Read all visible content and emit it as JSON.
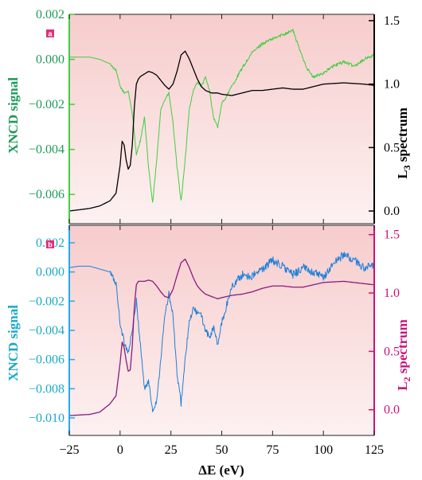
{
  "chart_data": [
    {
      "type": "line",
      "panel_label": "a",
      "xlabel_prefix": "Δ",
      "xlabel": "E (eV)",
      "xlim": [
        -25,
        125
      ],
      "x_ticks": [
        "-25",
        "0",
        "25",
        "50",
        "75",
        "100",
        "125"
      ],
      "left_axis": {
        "label": "XNCD signal",
        "color": "#1e9a5a",
        "spine_color": "#44cc44",
        "ylim": [
          -0.0073,
          0.002
        ],
        "ticks": [
          0.002,
          0.0,
          -0.002,
          -0.004,
          -0.006
        ],
        "tick_labels": [
          "0.002",
          "0.000",
          "−0.002",
          "−0.004",
          "−0.006"
        ]
      },
      "right_axis": {
        "label_main": "L",
        "label_sub": "3",
        "label_tail": " spectrum",
        "color": "#000000",
        "ylim": [
          -0.1,
          1.55
        ],
        "ticks": [
          1.5,
          1.0,
          0.5,
          0.0
        ],
        "tick_labels": [
          "1.5",
          "1.0",
          "0.5",
          "0.0"
        ]
      },
      "series": [
        {
          "axis": "left",
          "color": "#3fcf3f",
          "noisy": true,
          "x": [
            -25,
            -20,
            -15,
            -10,
            -5,
            -2,
            0,
            2,
            4,
            6,
            8,
            10,
            12,
            14,
            16,
            18,
            20,
            22,
            24,
            26,
            28,
            30,
            32,
            34,
            36,
            38,
            40,
            42,
            44,
            46,
            48,
            50,
            55,
            60,
            65,
            70,
            75,
            80,
            85,
            88,
            92,
            95,
            100,
            105,
            110,
            115,
            120,
            125
          ],
          "y": [
            0.0001,
            0.0001,
            0.0001,
            0.0,
            -0.0002,
            -0.0005,
            -0.0012,
            -0.0015,
            -0.0014,
            -0.0024,
            -0.0042,
            -0.0036,
            -0.0026,
            -0.0048,
            -0.0064,
            -0.0045,
            -0.0022,
            -0.0018,
            -0.0015,
            -0.0028,
            -0.0048,
            -0.0063,
            -0.0045,
            -0.0022,
            -0.0014,
            -0.001,
            -0.0012,
            -0.0008,
            -0.0014,
            -0.0026,
            -0.003,
            -0.002,
            -0.0012,
            -0.0004,
            0.0003,
            0.0007,
            0.0009,
            0.0011,
            0.0013,
            0.0005,
            -0.0004,
            -0.0008,
            -0.0006,
            -0.0003,
            -0.0001,
            -0.0003,
            0.0,
            0.0002
          ]
        },
        {
          "axis": "right",
          "color": "#000000",
          "noisy": false,
          "x": [
            -25,
            -15,
            -10,
            -5,
            -2,
            0,
            1,
            2,
            3,
            4,
            5,
            6,
            7,
            8,
            9,
            10,
            12,
            14,
            16,
            18,
            20,
            22,
            24,
            26,
            28,
            30,
            32,
            34,
            36,
            38,
            40,
            42,
            45,
            48,
            50,
            55,
            60,
            65,
            70,
            75,
            80,
            85,
            90,
            95,
            100,
            110,
            120,
            125
          ],
          "y": [
            0.0,
            0.02,
            0.04,
            0.08,
            0.14,
            0.36,
            0.55,
            0.52,
            0.4,
            0.33,
            0.36,
            0.52,
            0.82,
            1.0,
            1.04,
            1.06,
            1.08,
            1.1,
            1.09,
            1.07,
            1.03,
            0.99,
            0.96,
            1.0,
            1.1,
            1.23,
            1.26,
            1.2,
            1.12,
            1.04,
            0.98,
            0.95,
            0.93,
            0.93,
            0.92,
            0.91,
            0.93,
            0.95,
            0.95,
            0.96,
            0.97,
            0.96,
            0.96,
            0.98,
            1.0,
            1.01,
            1.0,
            0.99
          ]
        }
      ]
    },
    {
      "type": "line",
      "panel_label": "b",
      "xlabel_prefix": "Δ",
      "xlabel": "E (eV)",
      "xlim": [
        -25,
        125
      ],
      "x_ticks": [
        "-25",
        "0",
        "25",
        "50",
        "75",
        "100",
        "125"
      ],
      "left_axis": {
        "label": "XNCD signal",
        "color": "#1aa8c8",
        "spine_color": "#22aaee",
        "ylim": [
          -0.0112,
          0.0032
        ],
        "ticks": [
          0.002,
          0.0,
          -0.002,
          -0.004,
          -0.006,
          -0.008,
          -0.01
        ],
        "tick_labels": [
          "0.002",
          "0.000",
          "−0.002",
          "−0.004",
          "−0.006",
          "−0.008",
          "−0.010"
        ]
      },
      "right_axis": {
        "label_main": "L",
        "label_sub": "2",
        "label_tail": " spectrum",
        "color": "#cc1177",
        "ylim": [
          -0.22,
          1.58
        ],
        "ticks": [
          1.5,
          1.0,
          0.5,
          0.0
        ],
        "tick_labels": [
          "1.5",
          "1.0",
          "0.5",
          "0.0"
        ]
      },
      "series": [
        {
          "axis": "left",
          "color": "#1d7fd8",
          "noisy": true,
          "x": [
            -25,
            -20,
            -15,
            -10,
            -5,
            -2,
            0,
            2,
            4,
            6,
            8,
            10,
            12,
            14,
            16,
            18,
            20,
            22,
            24,
            26,
            28,
            30,
            32,
            34,
            36,
            38,
            40,
            42,
            44,
            46,
            48,
            50,
            55,
            60,
            65,
            70,
            75,
            80,
            85,
            90,
            95,
            100,
            105,
            110,
            115,
            120,
            125
          ],
          "y": [
            0.0003,
            0.0004,
            0.0004,
            0.0002,
            0.0,
            -0.0008,
            -0.0035,
            -0.0048,
            -0.0055,
            -0.004,
            -0.002,
            -0.005,
            -0.008,
            -0.0075,
            -0.0095,
            -0.0088,
            -0.006,
            -0.003,
            -0.0015,
            -0.003,
            -0.007,
            -0.009,
            -0.006,
            -0.0035,
            -0.0025,
            -0.0028,
            -0.003,
            -0.004,
            -0.0045,
            -0.0038,
            -0.005,
            -0.0035,
            -0.001,
            -0.0002,
            -0.0003,
            0.0002,
            0.0008,
            0.0004,
            -0.0002,
            0.0003,
            0.0,
            -0.0004,
            0.0006,
            0.0012,
            0.0008,
            0.0003,
            0.0004
          ]
        },
        {
          "axis": "right",
          "color": "#8a1a80",
          "noisy": false,
          "x": [
            -25,
            -15,
            -10,
            -5,
            -2,
            0,
            1,
            2,
            3,
            4,
            5,
            6,
            7,
            8,
            9,
            10,
            12,
            14,
            16,
            18,
            20,
            22,
            24,
            26,
            28,
            30,
            32,
            34,
            36,
            38,
            40,
            42,
            45,
            48,
            50,
            55,
            60,
            65,
            70,
            75,
            80,
            85,
            90,
            95,
            100,
            110,
            120,
            125
          ],
          "y": [
            -0.05,
            -0.04,
            -0.02,
            0.05,
            0.12,
            0.4,
            0.58,
            0.53,
            0.42,
            0.33,
            0.34,
            0.55,
            0.88,
            1.07,
            1.1,
            1.1,
            1.1,
            1.11,
            1.1,
            1.06,
            1.01,
            0.97,
            0.96,
            1.03,
            1.15,
            1.26,
            1.29,
            1.22,
            1.13,
            1.06,
            1.02,
            0.99,
            0.97,
            0.95,
            0.96,
            0.98,
            0.99,
            1.01,
            1.04,
            1.06,
            1.06,
            1.05,
            1.05,
            1.07,
            1.09,
            1.1,
            1.08,
            1.07
          ]
        }
      ]
    }
  ]
}
